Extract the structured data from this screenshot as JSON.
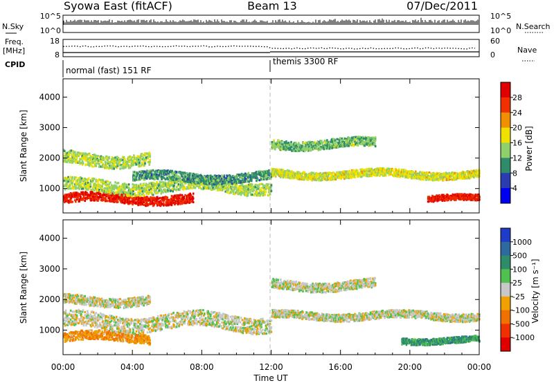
{
  "header": {
    "station": "Syowa East (fitACF)",
    "beam": "Beam 13",
    "date": "07/Dec/2011"
  },
  "top_panels": {
    "nsky_label": "N.Sky",
    "nsky_ticks": [
      "10^5",
      "10^0"
    ],
    "nsearch_label": "N.Search",
    "nsearch_ticks": [
      "10^5",
      "10^0"
    ],
    "freq_label_1": "Freq.",
    "freq_label_2": "[MHz]",
    "freq_ticks": [
      "18",
      "8"
    ],
    "nave_label": "Nave",
    "nave_ticks": [
      "60",
      "0"
    ],
    "cpid_label": "CPID",
    "cpid_segments": [
      "normal (fast) 151 RF",
      "themis 3300 RF"
    ]
  },
  "power_panel": {
    "ylabel": "Slant Range [km]",
    "yticks": [
      "4000",
      "3000",
      "2000",
      "1000"
    ],
    "colorbar_label": "Power [dB]",
    "colorbar_ticks": [
      "28",
      "24",
      "20",
      "16",
      "12",
      "8",
      "4"
    ],
    "colors": [
      "#0000f0",
      "#2a3cb0",
      "#2e8c6a",
      "#8fd06a",
      "#f0e000",
      "#f09000",
      "#f03000",
      "#e00000"
    ]
  },
  "velocity_panel": {
    "ylabel": "Slant Range [km]",
    "yticks": [
      "4000",
      "3000",
      "2000",
      "1000"
    ],
    "colorbar_label": "Velocity [m s⁻¹]",
    "colorbar_ticks": [
      "1000",
      "500",
      "100",
      "25",
      "-25",
      "-100",
      "-500",
      "-1000"
    ],
    "colors": [
      "#1e3cc8",
      "#2e6aa0",
      "#2e8c6a",
      "#50c050",
      "#c8c8c8",
      "#f0a000",
      "#f07000",
      "#f03000",
      "#e00000"
    ]
  },
  "xaxis": {
    "label": "Time UT",
    "ticks": [
      "00:00",
      "04:00",
      "08:00",
      "12:00",
      "16:00",
      "20:00",
      "00:00"
    ]
  },
  "chart_data": {
    "type": "heatmap",
    "title": "Syowa East (fitACF)",
    "subtitle": "Beam 13",
    "date": "07/Dec/2011",
    "xlabel": "Time UT",
    "ylabel": "Slant Range [km]",
    "xlim_hours": [
      0,
      24
    ],
    "ylim_km": [
      200,
      4600
    ],
    "panels": [
      {
        "name": "Power",
        "unit": "dB",
        "color_range": [
          0,
          30
        ],
        "bands": [
          {
            "t_start": 0.0,
            "t_end": 7.5,
            "r_center": 700,
            "r_width": 300,
            "value": 26
          },
          {
            "t_start": 0.0,
            "t_end": 12.0,
            "r_center": 1100,
            "r_width": 400,
            "value": 14
          },
          {
            "t_start": 0.0,
            "t_end": 5.0,
            "r_center": 2000,
            "r_width": 400,
            "value": 14
          },
          {
            "t_start": 4.0,
            "t_end": 12.0,
            "r_center": 1400,
            "r_width": 300,
            "value": 10
          },
          {
            "t_start": 12.0,
            "t_end": 24.0,
            "r_center": 1500,
            "r_width": 250,
            "value": 16
          },
          {
            "t_start": 12.0,
            "t_end": 18.0,
            "r_center": 2500,
            "r_width": 300,
            "value": 12
          },
          {
            "t_start": 21.0,
            "t_end": 24.0,
            "r_center": 700,
            "r_width": 200,
            "value": 26
          }
        ]
      },
      {
        "name": "Velocity",
        "unit": "m s^-1",
        "color_range": [
          -1000,
          1000
        ],
        "bands": [
          {
            "t_start": 0.0,
            "t_end": 5.0,
            "r_center": 800,
            "r_width": 300,
            "value": -300
          },
          {
            "t_start": 0.0,
            "t_end": 12.0,
            "r_center": 1300,
            "r_width": 500,
            "value": 0
          },
          {
            "t_start": 0.0,
            "t_end": 5.0,
            "r_center": 2000,
            "r_width": 300,
            "value": 0
          },
          {
            "t_start": 12.0,
            "t_end": 24.0,
            "r_center": 1500,
            "r_width": 250,
            "value": 0
          },
          {
            "t_start": 12.0,
            "t_end": 18.0,
            "r_center": 2500,
            "r_width": 300,
            "value": 0
          },
          {
            "t_start": 19.5,
            "t_end": 24.0,
            "r_center": 700,
            "r_width": 200,
            "value": 400
          }
        ]
      }
    ],
    "cpid_segments": [
      {
        "label": "normal (fast) 151 RF",
        "t_start": 0,
        "t_end": 12
      },
      {
        "label": "themis 3300 RF",
        "t_start": 12,
        "t_end": 24
      }
    ],
    "freq_mhz": [
      {
        "t_start": 0,
        "t_end": 12,
        "value": 12
      },
      {
        "t_start": 12,
        "t_end": 24,
        "value": 11
      }
    ]
  }
}
